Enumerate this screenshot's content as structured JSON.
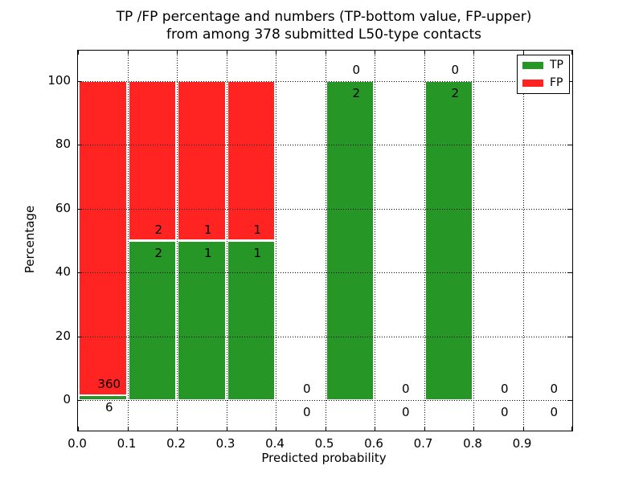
{
  "chart_data": {
    "type": "bar",
    "stacked": true,
    "title_line1": "TP /FP percentage and numbers (TP-bottom value, FP-upper)",
    "title_line2": "from among 378 submitted L50-type contacts",
    "xlabel": "Predicted probability",
    "ylabel": "Percentage",
    "total_submitted": 378,
    "contact_type": "L50",
    "xlim": [
      0.0,
      1.0
    ],
    "ylim": [
      -9.5,
      109.5
    ],
    "x_tick_values": [
      0.0,
      0.1,
      0.2,
      0.3,
      0.4,
      0.5,
      0.6,
      0.7,
      0.8,
      0.9
    ],
    "x_tick_labels": [
      "0.0",
      "0.1",
      "0.2",
      "0.3",
      "0.4",
      "0.5",
      "0.6",
      "0.7",
      "0.8",
      "0.9"
    ],
    "y_tick_values": [
      0,
      20,
      40,
      60,
      80,
      100
    ],
    "y_tick_labels": [
      "0",
      "20",
      "40",
      "60",
      "80",
      "100"
    ],
    "grid": "dotted",
    "bin_width": 0.1,
    "bins": [
      {
        "x0": 0.0,
        "x1": 0.1,
        "tp": 6,
        "fp": 360
      },
      {
        "x0": 0.1,
        "x1": 0.2,
        "tp": 2,
        "fp": 2
      },
      {
        "x0": 0.2,
        "x1": 0.3,
        "tp": 1,
        "fp": 1
      },
      {
        "x0": 0.3,
        "x1": 0.4,
        "tp": 1,
        "fp": 1
      },
      {
        "x0": 0.4,
        "x1": 0.5,
        "tp": 0,
        "fp": 0
      },
      {
        "x0": 0.5,
        "x1": 0.6,
        "tp": 2,
        "fp": 0
      },
      {
        "x0": 0.6,
        "x1": 0.7,
        "tp": 0,
        "fp": 0
      },
      {
        "x0": 0.7,
        "x1": 0.8,
        "tp": 2,
        "fp": 0
      },
      {
        "x0": 0.8,
        "x1": 0.9,
        "tp": 0,
        "fp": 0
      },
      {
        "x0": 0.9,
        "x1": 1.0,
        "tp": 0,
        "fp": 0
      }
    ],
    "series": [
      {
        "name": "TP",
        "counts": [
          6,
          2,
          1,
          1,
          0,
          2,
          0,
          2,
          0,
          0
        ]
      },
      {
        "name": "FP",
        "counts": [
          360,
          2,
          1,
          1,
          0,
          0,
          0,
          0,
          0,
          0
        ]
      }
    ],
    "colors": {
      "tp": "#269627",
      "fp": "#ff2421",
      "grid": "#000000",
      "background": "#ffffff"
    },
    "legend": {
      "position": "upper right",
      "items": [
        {
          "label": "TP",
          "color": "#269627"
        },
        {
          "label": "FP",
          "color": "#ff2421"
        }
      ]
    }
  }
}
